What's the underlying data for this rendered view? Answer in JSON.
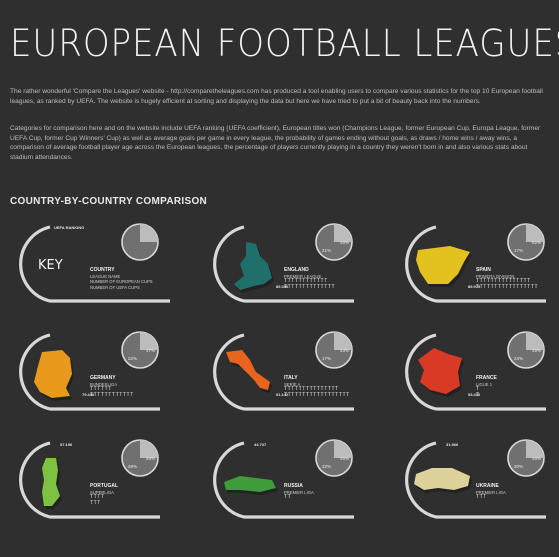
{
  "title": "EUROPEAN FOOTBALL LEAGUES",
  "intro": {
    "p1": "The rather wonderful 'Compare the Leagues' website - http://comparetheleagues.com has produced a tool enabling users to compare various statistics for the top 10 European football leagues, as ranked by UEFA. The website is hugely efficient at sorting and displaying the data but here we have tried to put a bit of beauty back into the numbers.",
    "p2": "Categories for comparison here and on the website include UEFA ranking (UEFA coefficient), European titles won (Champions League, former European Cup, Europa League, former UEFA Cup, former Cup Winners' Cup) as well as average goals per game in every league, the probability of games ending without goals, as draws / home wins / away wins, a comparison of average football player age across the European leagues, the percentage of players currently playing in a country they weren't born in and also various stats about stadium attendances."
  },
  "section_heading": "COUNTRY-BY-COUNTRY COMPARISON",
  "key": {
    "label": "KEY",
    "rank_label": "UEFA RANKING",
    "country": "COUNTRY",
    "league": "LEAGUE NAME",
    "line1": "NUMBER OF EUROPEAN CUPS",
    "line2": "NUMBER OF UEFA CUPS"
  },
  "cards": [
    {
      "country": "ENGLAND",
      "league": "PREMIER LEAGUE",
      "rank": "89.356",
      "color": "#1f6f6a",
      "t1": "TTTTTTTTTTTT",
      "t2": "TTTTTTTTTTTTTT",
      "pct_a": "48%",
      "pct_b": "21%"
    },
    {
      "country": "SPAIN",
      "league": "PRIMERA DIVISION",
      "rank": "89.979",
      "color": "#e3c21f",
      "t1": "TTTTTTTTTTTTTTT",
      "t2": "TTTTTTTTTTTTTTTTT",
      "pct_a": "52%",
      "pct_b": "17%"
    },
    {
      "country": "GERMANY",
      "league": "BUNDESLIGA",
      "rank": "79.436",
      "color": "#e89a1c",
      "t1": "TTTTTT",
      "t2": "TTTTTTTTTTTT",
      "pct_a": "47%",
      "pct_b": "22%"
    },
    {
      "country": "ITALY",
      "league": "SERIE A",
      "rank": "61.142",
      "color": "#e8641f",
      "t1": "TTTTTTTTTTTTTTT",
      "t2": "TTTTTTTTTTTTTTTTTT",
      "pct_a": "43%",
      "pct_b": "17%"
    },
    {
      "country": "FRANCE",
      "league": "LIGUE 1",
      "rank": "53.416",
      "color": "#d93a26",
      "t1": "T",
      "t2": "T",
      "pct_a": "45%",
      "pct_b": "24%"
    },
    {
      "country": "PORTUGAL",
      "league": "SUPERLIGA",
      "rank": "57.196",
      "color": "#7dc241",
      "t1": "TTTT",
      "t2": "TTT",
      "pct_a": "46%",
      "pct_b": "28%"
    },
    {
      "country": "RUSSIA",
      "league": "PREMIER LIGA",
      "rank": "44.707",
      "color": "#3f9c3a",
      "t1": "",
      "t2": "TT",
      "pct_a": "45%",
      "pct_b": "22%"
    },
    {
      "country": "UKRAINE",
      "league": "PREMIER LIGA",
      "rank": "31.966",
      "color": "#ddd29a",
      "t1": "",
      "t2": "TTT",
      "pct_a": "48%",
      "pct_b": "20%"
    }
  ]
}
